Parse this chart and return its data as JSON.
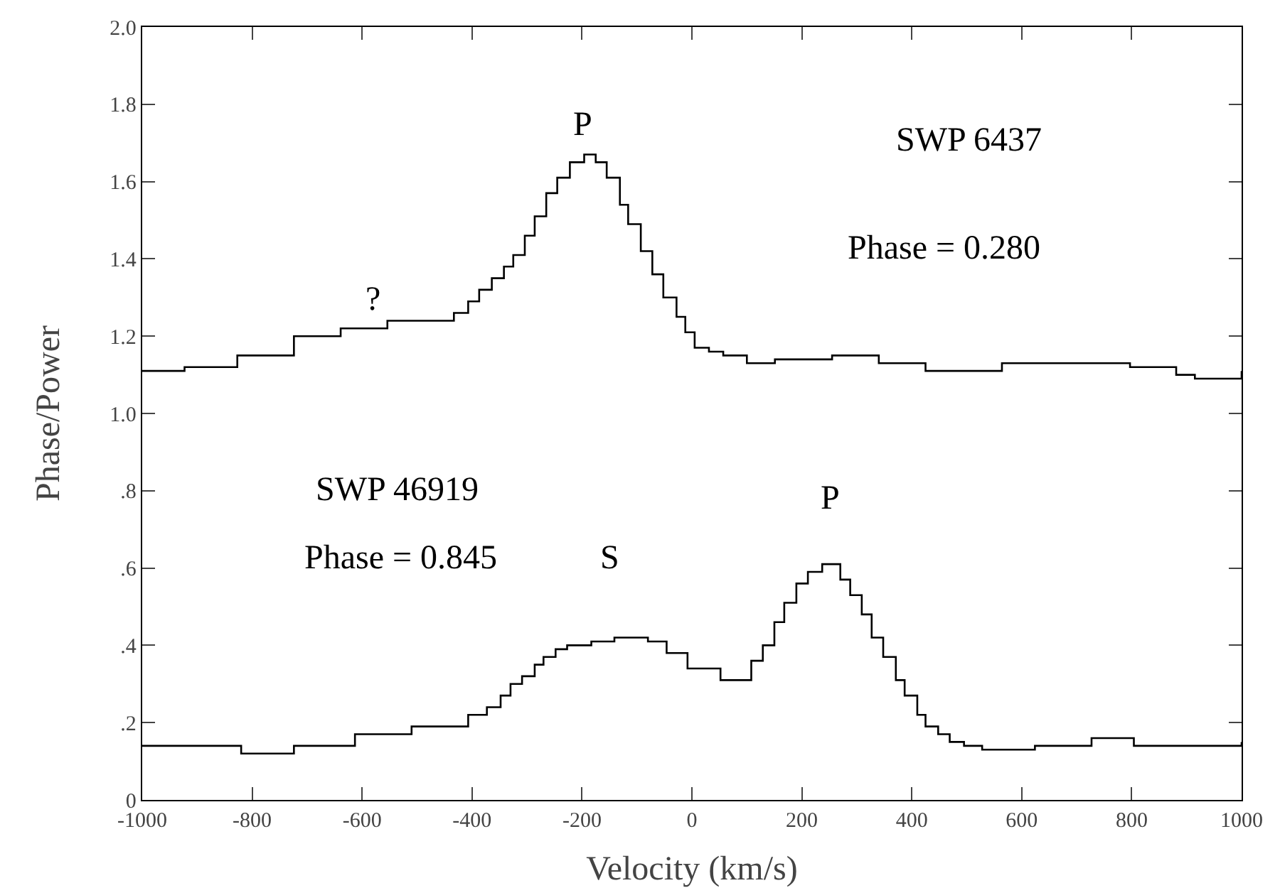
{
  "chart_data": {
    "type": "step",
    "xlabel": "Velocity (km/s)",
    "ylabel": "Phase/Power",
    "xlim": [
      -1000,
      1000
    ],
    "xticks": [
      -1000,
      -800,
      -600,
      -400,
      -200,
      0,
      200,
      400,
      600,
      800,
      1000
    ],
    "ylim": [
      0,
      2
    ],
    "yticks": [
      0,
      {
        "value": 0.2,
        "label": ".2"
      },
      {
        "value": 0.4,
        "label": ".4"
      },
      {
        "value": 0.6,
        "label": ".6"
      },
      {
        "value": 0.8,
        "label": ".8"
      },
      {
        "value": 1,
        "label": "1.0"
      },
      1.2,
      1.4,
      1.6,
      1.8,
      {
        "value": 2,
        "label": "2.0"
      }
    ],
    "grid": false,
    "marker": "none",
    "line_style": "solid",
    "series": [
      {
        "color": "#000000",
        "x": [
          -1000,
          -923,
          -827,
          -724,
          -639,
          -554,
          -467,
          -433,
          -407,
          -387,
          -364,
          -342,
          -325,
          -304,
          -286,
          -265,
          -245,
          -222,
          -196,
          -175,
          -155,
          -131,
          -116,
          -93,
          -72,
          -52,
          -28,
          -12,
          5,
          31,
          57,
          100,
          151,
          255,
          340,
          425,
          495,
          564,
          668,
          797,
          881,
          915,
          1000
        ],
        "values": [
          1.11,
          1.12,
          1.15,
          1.2,
          1.22,
          1.24,
          1.24,
          1.26,
          1.29,
          1.32,
          1.35,
          1.38,
          1.41,
          1.46,
          1.51,
          1.57,
          1.61,
          1.65,
          1.67,
          1.65,
          1.61,
          1.54,
          1.49,
          1.42,
          1.36,
          1.3,
          1.25,
          1.21,
          1.17,
          1.16,
          1.15,
          1.13,
          1.14,
          1.15,
          1.13,
          1.11,
          1.11,
          1.13,
          1.13,
          1.12,
          1.1,
          1.09,
          1.11
        ]
      },
      {
        "color": "#000000",
        "x": [
          -1000,
          -820,
          -724,
          -613,
          -510,
          -407,
          -373,
          -348,
          -330,
          -309,
          -286,
          -270,
          -248,
          -227,
          -183,
          -141,
          -80,
          -46,
          -8,
          52,
          90,
          108,
          129,
          150,
          168,
          190,
          211,
          237,
          270,
          288,
          309,
          327,
          348,
          371,
          387,
          410,
          425,
          448,
          469,
          495,
          528,
          624,
          727,
          804,
          874,
          1000
        ],
        "values": [
          0.14,
          0.12,
          0.14,
          0.17,
          0.19,
          0.22,
          0.24,
          0.27,
          0.3,
          0.32,
          0.35,
          0.37,
          0.39,
          0.4,
          0.41,
          0.42,
          0.41,
          0.38,
          0.34,
          0.31,
          0.31,
          0.36,
          0.4,
          0.46,
          0.51,
          0.56,
          0.59,
          0.61,
          0.57,
          0.53,
          0.48,
          0.42,
          0.37,
          0.31,
          0.27,
          0.22,
          0.19,
          0.17,
          0.15,
          0.14,
          0.13,
          0.14,
          0.16,
          0.14,
          0.14,
          0.15
        ]
      }
    ],
    "annotations": [
      "P",
      "?",
      "SWP 6437",
      "Phase = 0.280",
      "SWP 46919",
      "Phase = 0.845",
      "S",
      "P"
    ]
  }
}
